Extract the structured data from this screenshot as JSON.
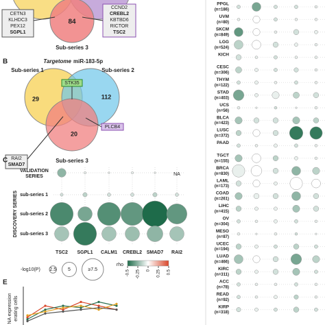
{
  "panel_a": {
    "box_left": [
      "CETN3",
      "KLHDC3",
      "PEX12",
      "SGPL1"
    ],
    "count": 84,
    "box_right": [
      "CCND2",
      "CREBL2",
      "KBTBD6",
      "RICTOR",
      "TSC2"
    ],
    "set3": "Sub-series 3"
  },
  "panel_b": {
    "letter": "B",
    "title_italic": "Targetome",
    "title_rest": "miR-183-5p",
    "set1": "Sub-series 1",
    "set2": "Sub-series 2",
    "set3": "Sub-series 3",
    "counts": [
      29,
      112,
      20
    ],
    "box_top": "STK35",
    "box_left": [
      "RAI2",
      "SMAD7"
    ],
    "box_right": "PLCB4"
  },
  "panel_c": {
    "letter": "C",
    "validation": [
      "VALIDATION",
      "SERIES"
    ],
    "discovery": "DISCOVERY SERIES",
    "na": "NA",
    "genes": [
      "TSC2",
      "SGPL1",
      "CALM1",
      "CREBL2",
      "SMAD7",
      "RAI2"
    ],
    "rows": [
      {
        "label": null,
        "logp": [
          3,
          0.8,
          0.6,
          0.8,
          0.6,
          null
        ],
        "rho": [
          -0.25,
          -0.05,
          -0.05,
          -0.05,
          -0.05,
          null
        ]
      },
      {
        "label": "sub-series 1",
        "logp": [
          1,
          1.5,
          1.2,
          1.2,
          1.5,
          1.2
        ],
        "rho": [
          -0.1,
          -0.15,
          -0.1,
          -0.1,
          -0.15,
          -0.1
        ]
      },
      {
        "label": "sub-series 2",
        "logp": [
          8,
          5,
          8,
          8,
          9,
          7
        ],
        "rho": [
          -0.4,
          -0.3,
          -0.38,
          -0.35,
          -0.5,
          -0.35
        ]
      },
      {
        "label": "sub-series 3",
        "logp": [
          5,
          8,
          5,
          5,
          5.5,
          5
        ],
        "rho": [
          -0.2,
          -0.45,
          -0.2,
          -0.22,
          -0.25,
          -0.2
        ]
      }
    ],
    "size_legend": {
      "title": "-log10(P)",
      "values": [
        2.5,
        5,
        {
          "value": 7.5,
          "label": "≥7.5"
        }
      ]
    },
    "color_legend": {
      "title": "rho",
      "ticks": [
        -0.5,
        -0.25,
        0,
        0.25,
        0.5
      ],
      "colors": [
        "#1e6b4a",
        "#ffffff",
        "#d9472b"
      ]
    }
  },
  "panel_e": {
    "letter": "E",
    "ylabel": [
      "NA expression",
      "erating cells"
    ],
    "ylim": [
      0,
      10
    ],
    "series": [
      {
        "color": "#d9472b",
        "values": [
          2,
          5,
          4,
          6,
          5,
          4
        ]
      },
      {
        "color": "#2a6e4f",
        "values": [
          1.5,
          4,
          5,
          4.5,
          6,
          5
        ]
      },
      {
        "color": "#e0a020",
        "values": [
          2.5,
          3.5,
          4.5,
          5,
          4,
          5.5
        ]
      },
      {
        "color": "#555555",
        "values": [
          1,
          3,
          3.5,
          4,
          4.5,
          4
        ]
      }
    ]
  },
  "panel_right": {
    "rows": [
      {
        "label": "PPGL",
        "n": "(n=186)",
        "logp": [
          2,
          5,
          2,
          2,
          1.5
        ],
        "rho": [
          -0.1,
          -0.3,
          -0.1,
          -0.1,
          -0.05
        ]
      },
      {
        "label": "UVM",
        "n": "(n=80)",
        "logp": [
          1.5,
          4,
          2,
          1.5,
          1.5
        ],
        "rho": [
          -0.05,
          0,
          -0.1,
          -0.05,
          -0.05
        ]
      },
      {
        "label": "SKCM",
        "n": "(n=849)",
        "logp": [
          5,
          4,
          1.5,
          3,
          2
        ],
        "rho": [
          -0.35,
          0,
          -0.05,
          -0.1,
          -0.05
        ]
      },
      {
        "label": "LGG",
        "n": "(n=524)",
        "logp": [
          5,
          5,
          3,
          2,
          1.5
        ],
        "rho": [
          -0.15,
          0,
          -0.1,
          -0.05,
          -0.05
        ]
      },
      {
        "label": "KICH",
        "n": null,
        "logp": [
          3,
          1.5,
          2,
          1.5,
          1.5
        ],
        "rho": [
          -0.1,
          -0.05,
          -0.1,
          -0.05,
          -0.05
        ]
      },
      {
        "label": "CESC",
        "n": "(n=306)",
        "logp": [
          3.5,
          2,
          2,
          2.5,
          1.5
        ],
        "rho": [
          -0.15,
          -0.05,
          -0.1,
          -0.1,
          -0.05
        ]
      },
      {
        "label": "THYM",
        "n": "(n=122)",
        "logp": [
          2,
          2,
          1.5,
          2,
          1.5
        ],
        "rho": [
          -0.1,
          -0.05,
          -0.05,
          -0.1,
          -0.05
        ]
      },
      {
        "label": "STAD",
        "n": "(n=403)",
        "logp": [
          6,
          2,
          4,
          3.5,
          3
        ],
        "rho": [
          -0.3,
          -0.05,
          -0.05,
          -0.15,
          -0.1
        ]
      },
      {
        "label": "UCS",
        "n": "(n=56)",
        "logp": [
          1.5,
          1,
          1.5,
          1,
          1.5
        ],
        "rho": [
          -0.05,
          -0.05,
          -0.1,
          -0.05,
          -0.05
        ]
      },
      {
        "label": "BLCA",
        "n": "(n=423)",
        "logp": [
          4,
          3,
          3,
          4,
          3
        ],
        "rho": [
          -0.2,
          -0.1,
          -0.1,
          -0.2,
          -0.15
        ]
      },
      {
        "label": "LUSC",
        "n": "(n=372)",
        "logp": [
          3,
          4,
          3,
          7.5,
          7
        ],
        "rho": [
          -0.15,
          0,
          -0.1,
          -0.45,
          -0.45
        ]
      },
      {
        "label": "PAAD",
        "n": null,
        "logp": [
          2,
          1.5,
          2,
          2,
          1.5
        ],
        "rho": [
          -0.1,
          -0.05,
          -0.05,
          -0.1,
          -0.05
        ]
      },
      {
        "label": "TGCT",
        "n": "(n=155)",
        "logp": [
          4,
          5,
          3,
          2,
          1.5
        ],
        "rho": [
          -0.2,
          0,
          -0.15,
          -0.05,
          -0.05
        ]
      },
      {
        "label": "BRCA",
        "n": "(n=830)",
        "logp": [
          7,
          6,
          3,
          5,
          4
        ],
        "rho": [
          -0.05,
          0,
          -0.1,
          -0.25,
          -0.15
        ]
      },
      {
        "label": "LAML",
        "n": "(n=173)",
        "logp": [
          3,
          4,
          2,
          7,
          5
        ],
        "rho": [
          -0.1,
          0,
          -0.05,
          0,
          0
        ]
      },
      {
        "label": "COAD",
        "n": "(n=261)",
        "logp": [
          4,
          3,
          3,
          5,
          3
        ],
        "rho": [
          -0.2,
          -0.05,
          -0.1,
          -0.25,
          -0.1
        ]
      },
      {
        "label": "LIHC",
        "n": "(n=415)",
        "logp": [
          3,
          2,
          2,
          4,
          3
        ],
        "rho": [
          -0.15,
          -0.05,
          -0.05,
          -0.2,
          -0.1
        ]
      },
      {
        "label": "OV",
        "n": "(n=304)",
        "logp": [
          2,
          1.5,
          2,
          2,
          1.5
        ],
        "rho": [
          -0.1,
          -0.05,
          -0.05,
          -0.1,
          -0.05
        ]
      },
      {
        "label": "MESO",
        "n": "(n=87)",
        "logp": [
          1.5,
          1,
          1.5,
          1.5,
          1
        ],
        "rho": [
          -0.05,
          -0.05,
          -0.05,
          -0.1,
          -0.05
        ]
      },
      {
        "label": "UCEC",
        "n": "(n=194)",
        "logp": [
          3,
          2,
          2,
          3,
          2
        ],
        "rho": [
          -0.15,
          -0.05,
          -0.1,
          -0.15,
          -0.1
        ]
      },
      {
        "label": "LUAD",
        "n": "(n=466)",
        "logp": [
          5,
          4,
          3,
          6,
          4
        ],
        "rho": [
          -0.2,
          0,
          -0.1,
          -0.3,
          -0.15
        ]
      },
      {
        "label": "KIRC",
        "n": "(n=311)",
        "logp": [
          3,
          2,
          3,
          4,
          2
        ],
        "rho": [
          -0.15,
          -0.05,
          -0.1,
          -0.2,
          -0.1
        ]
      },
      {
        "label": "ACC",
        "n": "(n=78)",
        "logp": [
          2,
          1.5,
          1.5,
          2,
          1.5
        ],
        "rho": [
          -0.1,
          -0.05,
          -0.05,
          -0.1,
          -0.05
        ]
      },
      {
        "label": "READ",
        "n": "(n=92)",
        "logp": [
          2,
          1.5,
          2,
          2.5,
          1.5
        ],
        "rho": [
          -0.1,
          -0.05,
          -0.05,
          -0.15,
          -0.05
        ]
      },
      {
        "label": "KIRP",
        "n": "(n=318)",
        "logp": [
          2.5,
          2,
          2,
          3,
          2
        ],
        "rho": [
          -0.1,
          -0.05,
          -0.1,
          -0.15,
          -0.1
        ]
      }
    ]
  }
}
